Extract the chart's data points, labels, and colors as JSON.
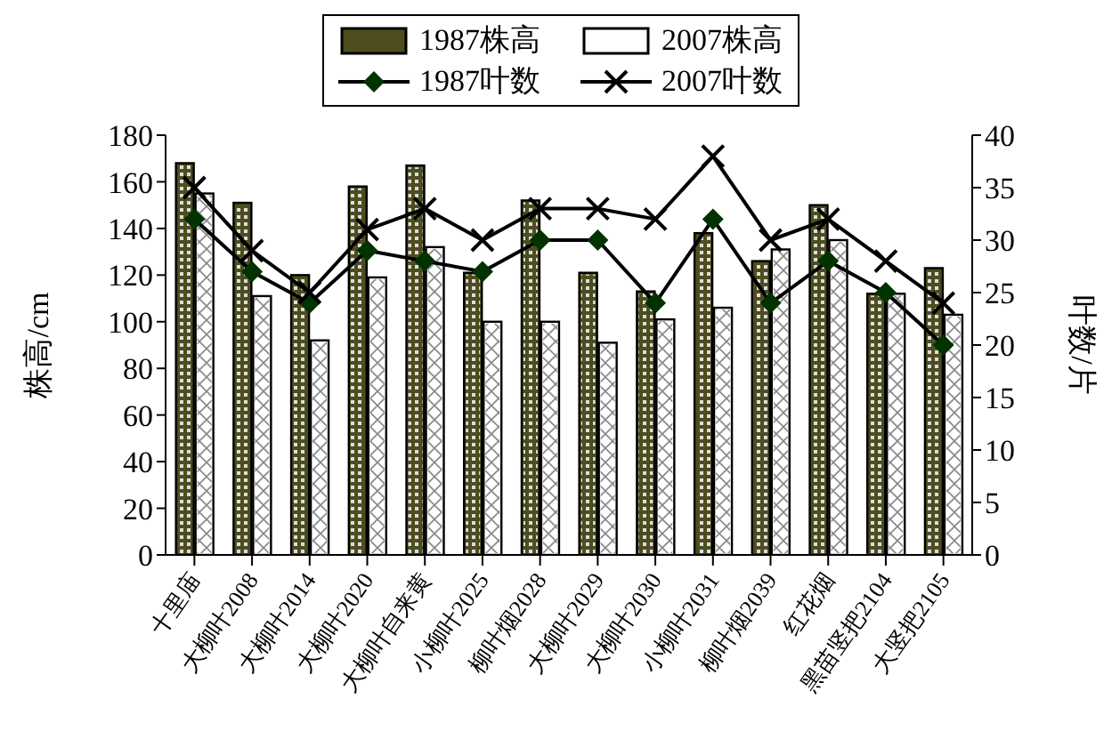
{
  "chart_data": {
    "type": "bar",
    "ylabel": "株高/cm",
    "y2label": "叶数/片",
    "categories": [
      "十里庙",
      "大柳叶2008",
      "大柳叶2014",
      "大柳叶2020",
      "大柳叶自来黄",
      "小柳叶2025",
      "柳叶烟2028",
      "大柳叶2029",
      "大柳叶2030",
      "小柳叶2031",
      "柳叶烟2039",
      "红花烟",
      "黑苗竖把2104",
      "大竖把2105"
    ],
    "series": [
      {
        "name": "1987株高",
        "color": "#4d4d1f",
        "values": [
          168,
          151,
          120,
          158,
          167,
          121,
          152,
          121,
          113,
          138,
          126,
          150,
          112,
          123
        ]
      },
      {
        "name": "2007株高",
        "color": "#ffffff",
        "values": [
          155,
          111,
          92,
          119,
          132,
          100,
          100,
          91,
          101,
          106,
          131,
          135,
          112,
          103
        ]
      },
      {
        "name": "1987叶数",
        "type": "line",
        "axis": "y2",
        "marker": "diamond",
        "color": "#003300",
        "values": [
          32,
          27,
          24,
          29,
          28,
          27,
          30,
          30,
          24,
          32,
          24,
          28,
          25,
          20
        ]
      },
      {
        "name": "2007叶数",
        "type": "line",
        "axis": "y2",
        "marker": "cross",
        "color": "#000000",
        "values": [
          35,
          29,
          25,
          31,
          33,
          30,
          33,
          33,
          32,
          38,
          30,
          32,
          28,
          24
        ]
      }
    ],
    "ylim": [
      0,
      180
    ],
    "yticks": [
      0,
      20,
      40,
      60,
      80,
      100,
      120,
      140,
      160,
      180
    ],
    "y2lim": [
      0,
      40
    ],
    "y2ticks": [
      0,
      5,
      10,
      15,
      20,
      25,
      30,
      35,
      40
    ],
    "legend": "top"
  }
}
